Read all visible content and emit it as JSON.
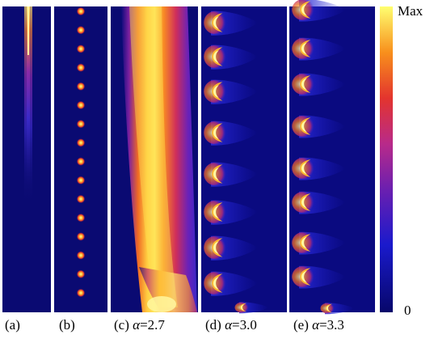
{
  "panels": [
    {
      "id": "a",
      "caption_label": "(a)",
      "alpha_symbol": "",
      "alpha_value": ""
    },
    {
      "id": "b",
      "caption_label": "(b)",
      "alpha_symbol": "",
      "alpha_value": ""
    },
    {
      "id": "c",
      "caption_label": "(c)",
      "alpha_symbol": "α",
      "alpha_value": "=2.7"
    },
    {
      "id": "d",
      "caption_label": "(d)",
      "alpha_symbol": "α",
      "alpha_value": "=3.0"
    },
    {
      "id": "e",
      "caption_label": "(e)",
      "alpha_symbol": "α",
      "alpha_value": "=3.3"
    }
  ],
  "colorbar": {
    "max_label": "Max",
    "min_label": "0"
  },
  "colors": {
    "background": "#0a0a6e",
    "purple": "#6a1fb0",
    "magenta": "#b82a8a",
    "red": "#e3342e",
    "orange": "#f57a1d",
    "yellow": "#ffd23c",
    "pale": "#fffaa0"
  }
}
